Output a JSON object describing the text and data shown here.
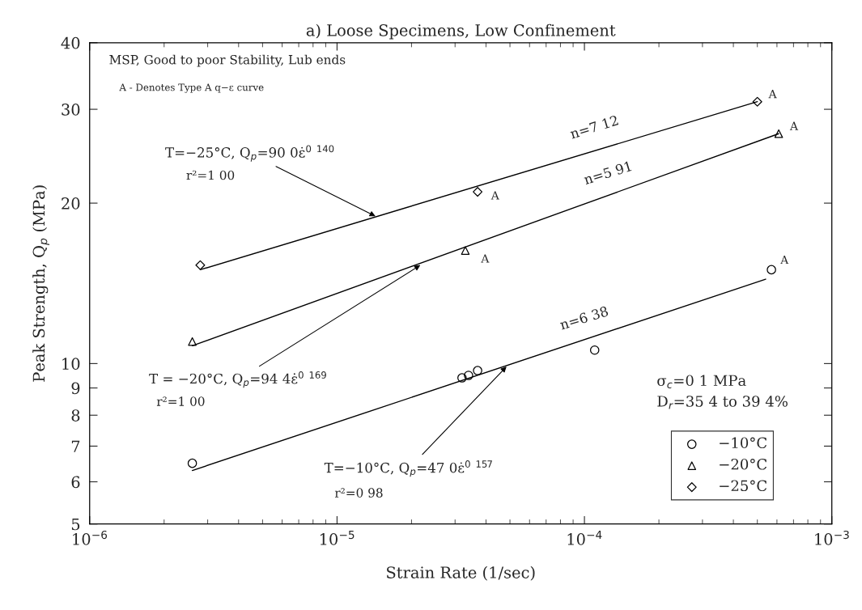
{
  "chart_data": {
    "type": "scatter",
    "title": "a) Loose Specimens, Low Confinement",
    "xlabel": "Strain Rate (1/sec)",
    "ylabel": "Peak Strength, Q$_{p}$ (MPa)",
    "log": "xy",
    "xlim": [
      1e-06,
      0.001
    ],
    "ylim": [
      5,
      40
    ],
    "xticks": [
      {
        "value": 1e-06,
        "label": "10$^{−6}$"
      },
      {
        "value": 1e-05,
        "label": "10$^{−5}$"
      },
      {
        "value": 0.0001,
        "label": "10$^{−4}$"
      },
      {
        "value": 0.001,
        "label": "10$^{−3}$"
      }
    ],
    "yticks": [
      5,
      6,
      7,
      8,
      9,
      10,
      20,
      30,
      40
    ],
    "legend": "bottom right",
    "series": [
      {
        "name": "−10°C",
        "marker": "circle",
        "color": "#000000",
        "x": [
          2.6e-06,
          3.2e-05,
          3.4e-05,
          3.7e-05,
          0.00011,
          0.00057
        ],
        "values": [
          6.5,
          9.4,
          9.5,
          9.7,
          10.6,
          15.0
        ]
      },
      {
        "name": "−20°C",
        "marker": "triangle",
        "color": "#000000",
        "x": [
          2.6e-06,
          3.3e-05,
          0.00061
        ],
        "values": [
          11.0,
          16.3,
          27.0
        ]
      },
      {
        "name": "−25°C",
        "marker": "diamond",
        "color": "#000000",
        "x": [
          2.8e-06,
          3.7e-05,
          0.0005
        ],
        "values": [
          15.3,
          21.0,
          31.0
        ]
      },
      {
        "type": "line",
        "marker": "none",
        "line_style": "solid",
        "color": "#000000",
        "x": [
          2.6e-06,
          0.00054
        ],
        "values": [
          6.3,
          14.4
        ]
      },
      {
        "type": "line",
        "marker": "none",
        "line_style": "solid",
        "color": "#000000",
        "x": [
          2.6e-06,
          0.00061
        ],
        "values": [
          10.8,
          27.0
        ]
      },
      {
        "type": "line",
        "marker": "none",
        "line_style": "solid",
        "color": "#000000",
        "x": [
          2.8e-06,
          0.0005
        ],
        "values": [
          15.0,
          31.0
        ]
      }
    ],
    "annotations": [
      "MSP, Good to poor Stability, Lub ends",
      "A - Denotes Type A q−ε curve",
      {
        "text": "T=−25°C, Q$_{p}$=90 0ε̇$^{0 140}$",
        "x": 1.43e-05,
        "y": 18.9
      },
      {
        "text": "T = −20°C, Q$_{p}$=94 4ε̇$^{0 169}$",
        "x": 2.17e-05,
        "y": 15.3
      },
      {
        "text": "T=−10°C, Q$_{p}$=47 0ε̇$^{0 157}$",
        "x": 4.84e-05,
        "y": 9.87
      },
      {
        "text": "n=7 12",
        "x": 0.00011,
        "y": 25.1
      },
      {
        "text": "n=5 91",
        "x": 0.000125,
        "y": 20.6
      },
      {
        "text": "n=6 38",
        "x": 0.0001,
        "y": 11.0
      },
      {
        "text": "A",
        "x": 3.7e-05,
        "y": 21.0
      },
      {
        "text": "A",
        "x": 0.0005,
        "y": 31.0
      },
      {
        "text": "A",
        "x": 3.3e-05,
        "y": 16.3
      },
      {
        "text": "A",
        "x": 0.00061,
        "y": 27.0
      },
      {
        "text": "A",
        "x": 0.00057,
        "y": 15.0
      },
      "σ$_{c}$=0 1 MPa\nD$_{r}$=35 4 to 39 4%",
      "r²=1 00",
      "r²=1 00",
      "r²=0 98"
    ]
  }
}
